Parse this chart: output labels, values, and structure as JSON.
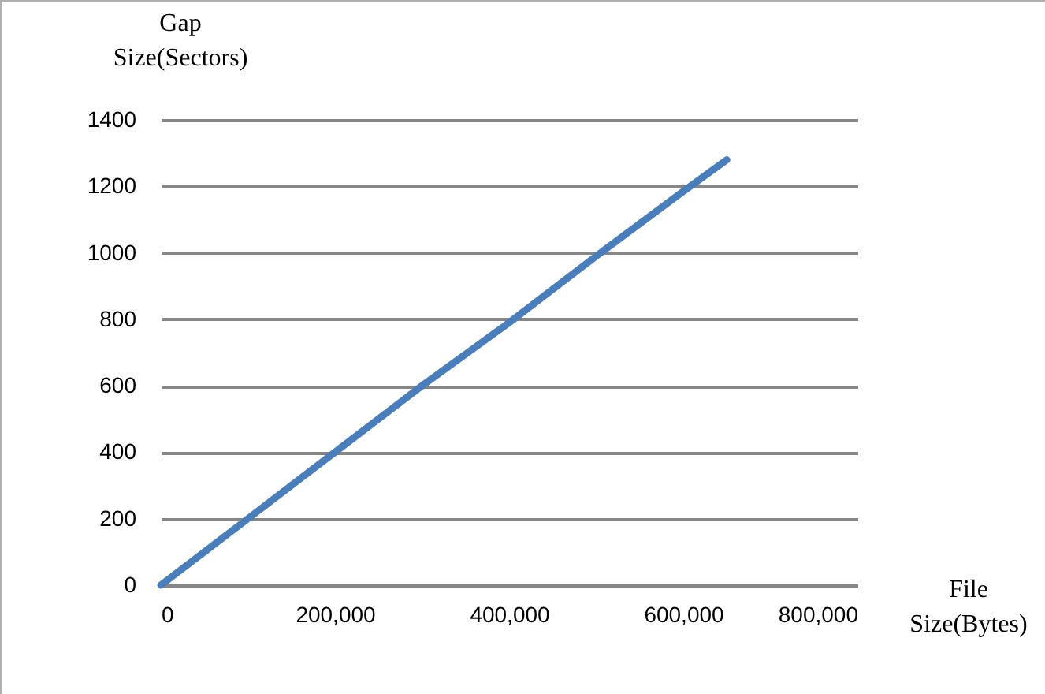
{
  "chart_data": {
    "type": "line",
    "xlabel": "File Size(Bytes)",
    "ylabel": "Gap Size(Sectors)",
    "x": [
      0,
      100000,
      200000,
      300000,
      400000,
      500000,
      600000,
      650000
    ],
    "series": [
      {
        "color": "#4a7ebb",
        "values": [
          0,
          200,
          400,
          600,
          790,
          990,
          1185,
          1280
        ]
      }
    ],
    "xlim": [
      0,
      800000
    ],
    "xticks": [
      {
        "value": 0,
        "label": "0"
      },
      {
        "value": 200000,
        "label": "200,000"
      },
      {
        "value": 400000,
        "label": "400,000"
      },
      {
        "value": 600000,
        "label": "600,000"
      },
      {
        "value": 800000,
        "label": "800,000"
      }
    ],
    "ylim": [
      0,
      1400
    ],
    "yticks": [
      0,
      200,
      400,
      600,
      800,
      1000,
      1200,
      1400
    ],
    "grid": "y",
    "marker": "none",
    "line_style": "solid"
  }
}
